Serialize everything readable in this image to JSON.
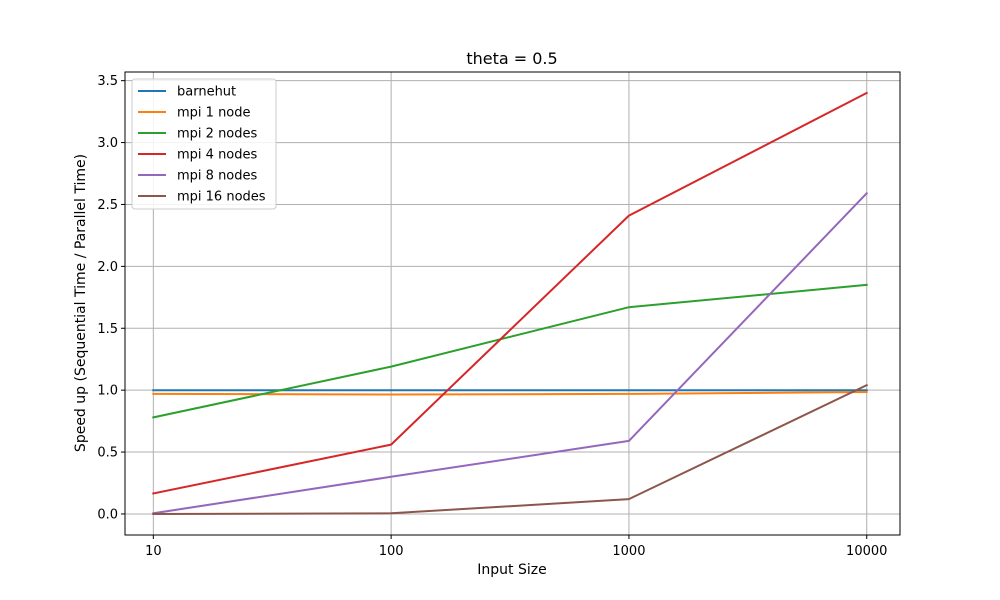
{
  "chart_data": {
    "type": "line",
    "title": "theta = 0.5",
    "xlabel": "Input Size",
    "ylabel": "Speed up (Sequential Time / Parallel Time)",
    "x_scale": "log",
    "x": [
      10,
      100,
      1000,
      10000
    ],
    "x_tick_labels": [
      "10",
      "100",
      "1000",
      "10000"
    ],
    "xlim": [
      7.6,
      13800
    ],
    "ylim": [
      -0.17,
      3.57
    ],
    "y_ticks": [
      0.0,
      0.5,
      1.0,
      1.5,
      2.0,
      2.5,
      3.0,
      3.5
    ],
    "y_tick_labels": [
      "0.0",
      "0.5",
      "1.0",
      "1.5",
      "2.0",
      "2.5",
      "3.0",
      "3.5"
    ],
    "grid": true,
    "legend_position": "top-left",
    "series": [
      {
        "name": "barnehut",
        "color": "#1f77b4",
        "values": [
          1.0,
          1.0,
          1.0,
          1.0
        ]
      },
      {
        "name": "mpi 1 node",
        "color": "#ff7f0e",
        "values": [
          0.97,
          0.965,
          0.97,
          0.985
        ]
      },
      {
        "name": "mpi 2 nodes",
        "color": "#2ca02c",
        "values": [
          0.78,
          1.19,
          1.67,
          1.85
        ]
      },
      {
        "name": "mpi 4 nodes",
        "color": "#d62728",
        "values": [
          0.165,
          0.56,
          2.41,
          3.4
        ]
      },
      {
        "name": "mpi 8 nodes",
        "color": "#9467bd",
        "values": [
          0.005,
          0.3,
          0.59,
          2.59
        ]
      },
      {
        "name": "mpi 16 nodes",
        "color": "#8c564b",
        "values": [
          0.0,
          0.005,
          0.12,
          1.04
        ]
      }
    ]
  }
}
